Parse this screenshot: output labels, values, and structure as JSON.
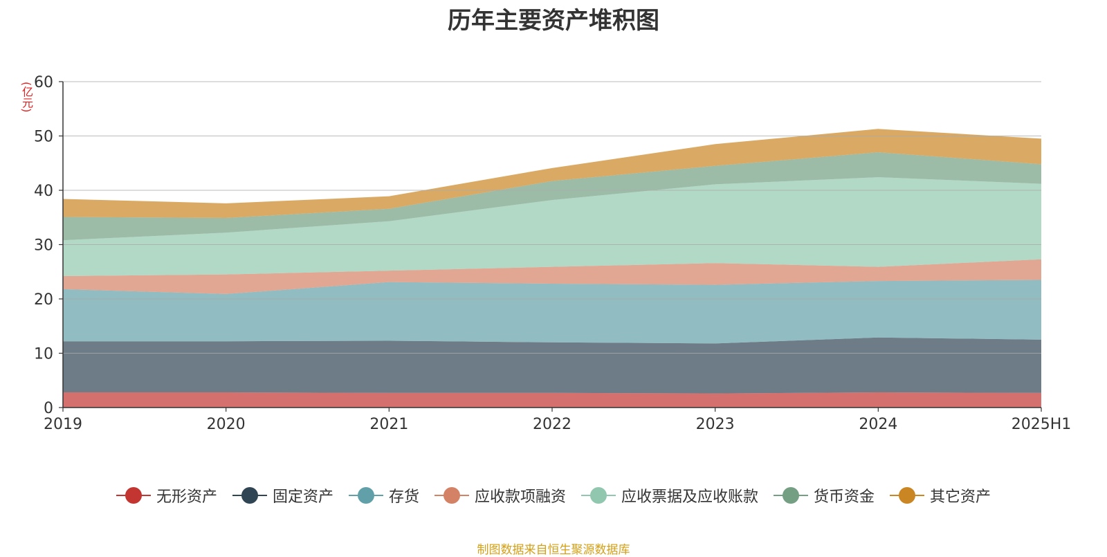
{
  "chart_data": {
    "type": "area",
    "stacked": true,
    "title": "历年主要资产堆积图",
    "ylabel": "(亿元)",
    "xlabel": "",
    "categories": [
      "2019",
      "2020",
      "2021",
      "2022",
      "2023",
      "2024",
      "2025H1"
    ],
    "ylim": [
      0,
      60
    ],
    "yticks": [
      0,
      10,
      20,
      30,
      40,
      50,
      60
    ],
    "grid": true,
    "legend_position": "bottom",
    "series": [
      {
        "name": "无形资产",
        "color": "#c23531",
        "values": [
          2.8,
          2.8,
          2.7,
          2.7,
          2.6,
          2.8,
          2.7
        ]
      },
      {
        "name": "固定资产",
        "color": "#2f4554",
        "values": [
          9.4,
          9.4,
          9.6,
          9.3,
          9.2,
          10.1,
          9.8
        ]
      },
      {
        "name": "存货",
        "color": "#61a0a8",
        "values": [
          9.6,
          8.7,
          10.8,
          10.8,
          10.8,
          10.4,
          11.0
        ]
      },
      {
        "name": "应收款项融资",
        "color": "#d48265",
        "values": [
          2.4,
          3.6,
          2.1,
          3.1,
          4.0,
          2.6,
          3.8
        ]
      },
      {
        "name": "应收票据及应收账款",
        "color": "#91c7ae",
        "values": [
          6.6,
          7.7,
          9.1,
          12.3,
          14.5,
          16.5,
          13.9
        ]
      },
      {
        "name": "货币资金",
        "color": "#749f83",
        "values": [
          4.3,
          2.7,
          2.3,
          3.5,
          3.4,
          4.6,
          3.6
        ]
      },
      {
        "name": "其它资产",
        "color": "#ca8622",
        "values": [
          3.3,
          2.7,
          2.3,
          2.4,
          4.0,
          4.3,
          4.7
        ]
      }
    ]
  },
  "footer": {
    "source": "制图数据来自恒生聚源数据库"
  }
}
